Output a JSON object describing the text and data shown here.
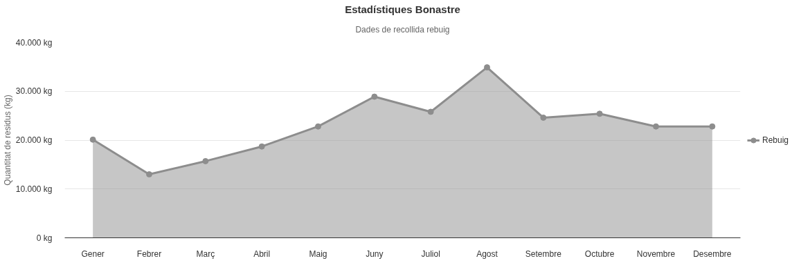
{
  "chart_data": {
    "type": "area",
    "title": "Estadístiques Bonastre",
    "subtitle": "Dades de recollida rebuig",
    "ylabel": "Quantitat de residus (kg)",
    "categories": [
      "Gener",
      "Febrer",
      "Març",
      "Abril",
      "Maig",
      "Juny",
      "Juliol",
      "Agost",
      "Setembre",
      "Octubre",
      "Novembre",
      "Desembre"
    ],
    "series": [
      {
        "name": "Rebuig",
        "color": "#8d8d8d",
        "values": [
          20100,
          13000,
          15700,
          18700,
          22800,
          28900,
          25800,
          34900,
          24600,
          25400,
          22800,
          22800
        ]
      }
    ],
    "ylim": [
      0,
      40000
    ],
    "yticks": [
      {
        "value": 0,
        "label": "0 kg"
      },
      {
        "value": 10000,
        "label": "10.000 kg"
      },
      {
        "value": 20000,
        "label": "20.000 kg"
      },
      {
        "value": 30000,
        "label": "30.000 kg"
      },
      {
        "value": 40000,
        "label": "40.000 kg"
      }
    ],
    "grid": "y",
    "legend": "right",
    "marker": "circle"
  }
}
